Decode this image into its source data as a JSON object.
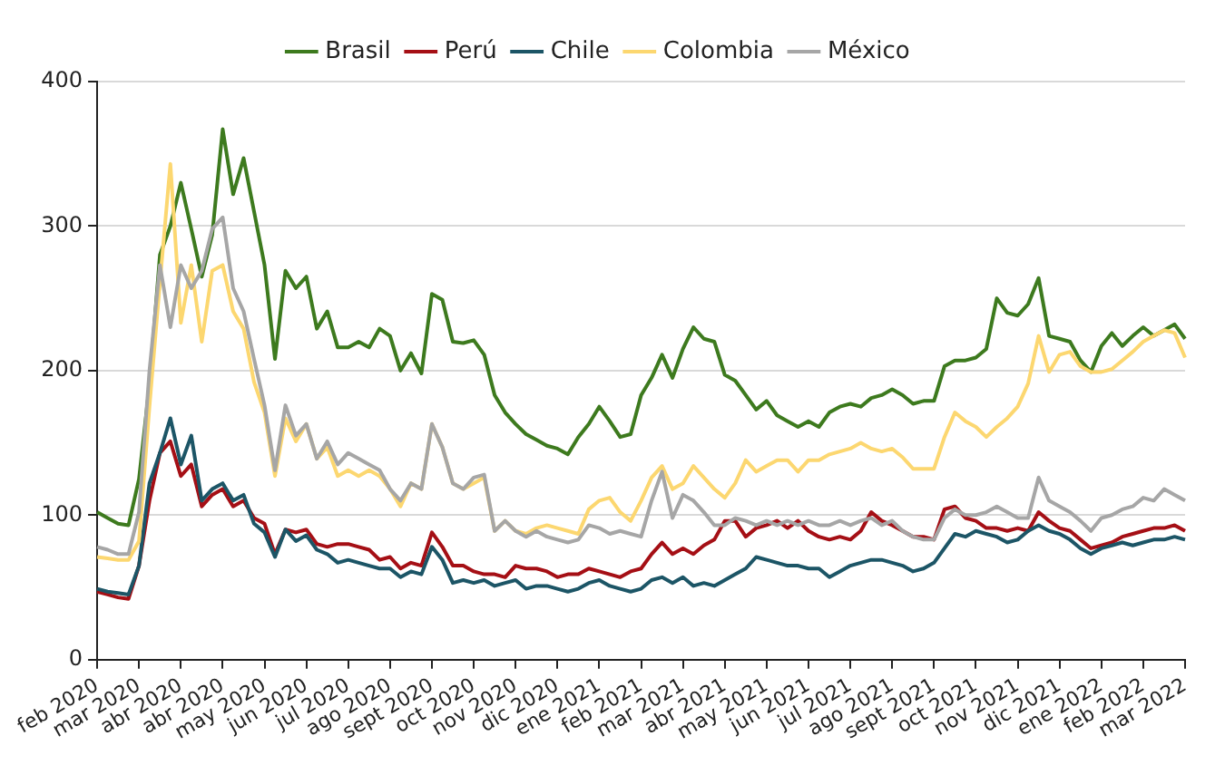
{
  "chart_data": {
    "type": "line",
    "categories": [
      "feb 2020",
      null,
      null,
      null,
      "mar 2020",
      null,
      null,
      null,
      "abr 2020",
      null,
      null,
      null,
      "abr 2020",
      null,
      null,
      null,
      "may 2020",
      null,
      null,
      null,
      "jun 2020",
      null,
      null,
      null,
      "jul 2020",
      null,
      null,
      null,
      "ago 2020",
      null,
      null,
      null,
      "sept 2020",
      null,
      null,
      null,
      "oct 2020",
      null,
      null,
      null,
      "nov 2020",
      null,
      null,
      null,
      "dic 2020",
      null,
      null,
      null,
      "ene 2021",
      null,
      null,
      null,
      "feb 2021",
      null,
      null,
      null,
      "mar 2021",
      null,
      null,
      null,
      "abr 2021",
      null,
      null,
      null,
      "may 2021",
      null,
      null,
      null,
      "jun 2021",
      null,
      null,
      null,
      "jul 2021",
      null,
      null,
      null,
      "ago 2021",
      null,
      null,
      null,
      "sept 2021",
      null,
      null,
      null,
      "oct 2021",
      null,
      null,
      null,
      "nov 2021",
      null,
      null,
      null,
      "dic 2021",
      null,
      null,
      null,
      "ene 2022",
      null,
      null,
      null,
      "feb 2022",
      null,
      null,
      null,
      "mar 2022"
    ],
    "series": [
      {
        "name": "Brasil",
        "color": "#3d7a1e",
        "values": [
          102,
          98,
          94,
          93,
          125,
          190,
          280,
          300,
          330,
          298,
          265,
          294,
          367,
          322,
          347,
          310,
          273,
          208,
          269,
          257,
          265,
          229,
          241,
          216,
          216,
          220,
          216,
          229,
          224,
          200,
          212,
          198,
          253,
          249,
          220,
          219,
          221,
          211,
          183,
          171,
          163,
          156,
          152,
          148,
          146,
          142,
          154,
          163,
          175,
          165,
          154,
          156,
          183,
          195,
          211,
          195,
          215,
          230,
          222,
          220,
          197,
          193,
          183,
          173,
          179,
          169,
          165,
          161,
          165,
          161,
          171,
          175,
          177,
          175,
          181,
          183,
          187,
          183,
          177,
          179,
          179,
          203,
          207,
          207,
          209,
          215,
          250,
          240,
          238,
          246,
          264,
          224,
          222,
          220,
          207,
          199,
          217,
          226,
          217,
          224,
          230,
          224,
          228,
          232,
          222
        ]
      },
      {
        "name": "Perú",
        "color": "#a50f15",
        "values": [
          47,
          45,
          43,
          42,
          65,
          110,
          143,
          151,
          127,
          135,
          106,
          114,
          118,
          106,
          110,
          98,
          94,
          73,
          90,
          88,
          90,
          80,
          78,
          80,
          80,
          78,
          76,
          69,
          71,
          63,
          67,
          65,
          88,
          78,
          65,
          65,
          61,
          59,
          59,
          57,
          65,
          63,
          63,
          61,
          57,
          59,
          59,
          63,
          61,
          59,
          57,
          61,
          63,
          73,
          81,
          73,
          77,
          73,
          79,
          83,
          96,
          96,
          85,
          91,
          93,
          96,
          91,
          96,
          89,
          85,
          83,
          85,
          83,
          89,
          102,
          96,
          93,
          89,
          85,
          85,
          83,
          104,
          106,
          98,
          96,
          91,
          91,
          89,
          91,
          89,
          102,
          96,
          91,
          89,
          83,
          77,
          79,
          81,
          85,
          87,
          89,
          91,
          91,
          93,
          89
        ]
      },
      {
        "name": "Chile",
        "color": "#1c5566",
        "values": [
          49,
          47,
          46,
          45,
          65,
          122,
          143,
          167,
          135,
          155,
          110,
          118,
          122,
          110,
          114,
          94,
          88,
          71,
          90,
          82,
          86,
          76,
          73,
          67,
          69,
          67,
          65,
          63,
          63,
          57,
          61,
          59,
          78,
          69,
          53,
          55,
          53,
          55,
          51,
          53,
          55,
          49,
          51,
          51,
          49,
          47,
          49,
          53,
          55,
          51,
          49,
          47,
          49,
          55,
          57,
          53,
          57,
          51,
          53,
          51,
          55,
          59,
          63,
          71,
          69,
          67,
          65,
          65,
          63,
          63,
          57,
          61,
          65,
          67,
          69,
          69,
          67,
          65,
          61,
          63,
          67,
          77,
          87,
          85,
          89,
          87,
          85,
          81,
          83,
          89,
          93,
          89,
          87,
          83,
          77,
          73,
          77,
          79,
          81,
          79,
          81,
          83,
          83,
          85,
          83
        ]
      },
      {
        "name": "Colombia",
        "color": "#fcd770",
        "values": [
          71,
          70,
          69,
          69,
          82,
          175,
          261,
          343,
          233,
          273,
          220,
          269,
          273,
          241,
          229,
          192,
          171,
          127,
          167,
          151,
          163,
          139,
          147,
          127,
          131,
          127,
          131,
          127,
          118,
          106,
          122,
          118,
          163,
          147,
          122,
          118,
          122,
          126,
          89,
          96,
          89,
          87,
          91,
          93,
          91,
          89,
          87,
          104,
          110,
          112,
          102,
          96,
          110,
          126,
          134,
          118,
          122,
          134,
          126,
          118,
          112,
          122,
          138,
          130,
          134,
          138,
          138,
          130,
          138,
          138,
          142,
          144,
          146,
          150,
          146,
          144,
          146,
          140,
          132,
          132,
          132,
          154,
          171,
          165,
          161,
          154,
          161,
          167,
          175,
          191,
          224,
          199,
          211,
          213,
          203,
          199,
          199,
          201,
          207,
          213,
          220,
          224,
          228,
          226,
          209
        ]
      },
      {
        "name": "México",
        "color": "#a6a6a6",
        "values": [
          78,
          76,
          73,
          73,
          102,
          200,
          273,
          230,
          273,
          257,
          269,
          298,
          306,
          257,
          241,
          208,
          176,
          131,
          176,
          155,
          163,
          139,
          151,
          135,
          143,
          139,
          135,
          131,
          118,
          110,
          122,
          118,
          163,
          147,
          122,
          118,
          126,
          128,
          89,
          96,
          89,
          85,
          89,
          85,
          83,
          81,
          83,
          93,
          91,
          87,
          89,
          87,
          85,
          110,
          130,
          98,
          114,
          110,
          102,
          93,
          93,
          98,
          96,
          93,
          96,
          93,
          96,
          93,
          96,
          93,
          93,
          96,
          93,
          96,
          98,
          93,
          96,
          89,
          85,
          83,
          83,
          98,
          104,
          100,
          100,
          102,
          106,
          102,
          98,
          98,
          126,
          110,
          106,
          102,
          96,
          89,
          98,
          100,
          104,
          106,
          112,
          110,
          118,
          114,
          110
        ]
      }
    ],
    "ylim": [
      0,
      400
    ],
    "yticks": [
      0,
      100,
      200,
      300,
      400
    ],
    "grid": "y",
    "legend": "top",
    "marker": "none",
    "line_style": "solid"
  }
}
